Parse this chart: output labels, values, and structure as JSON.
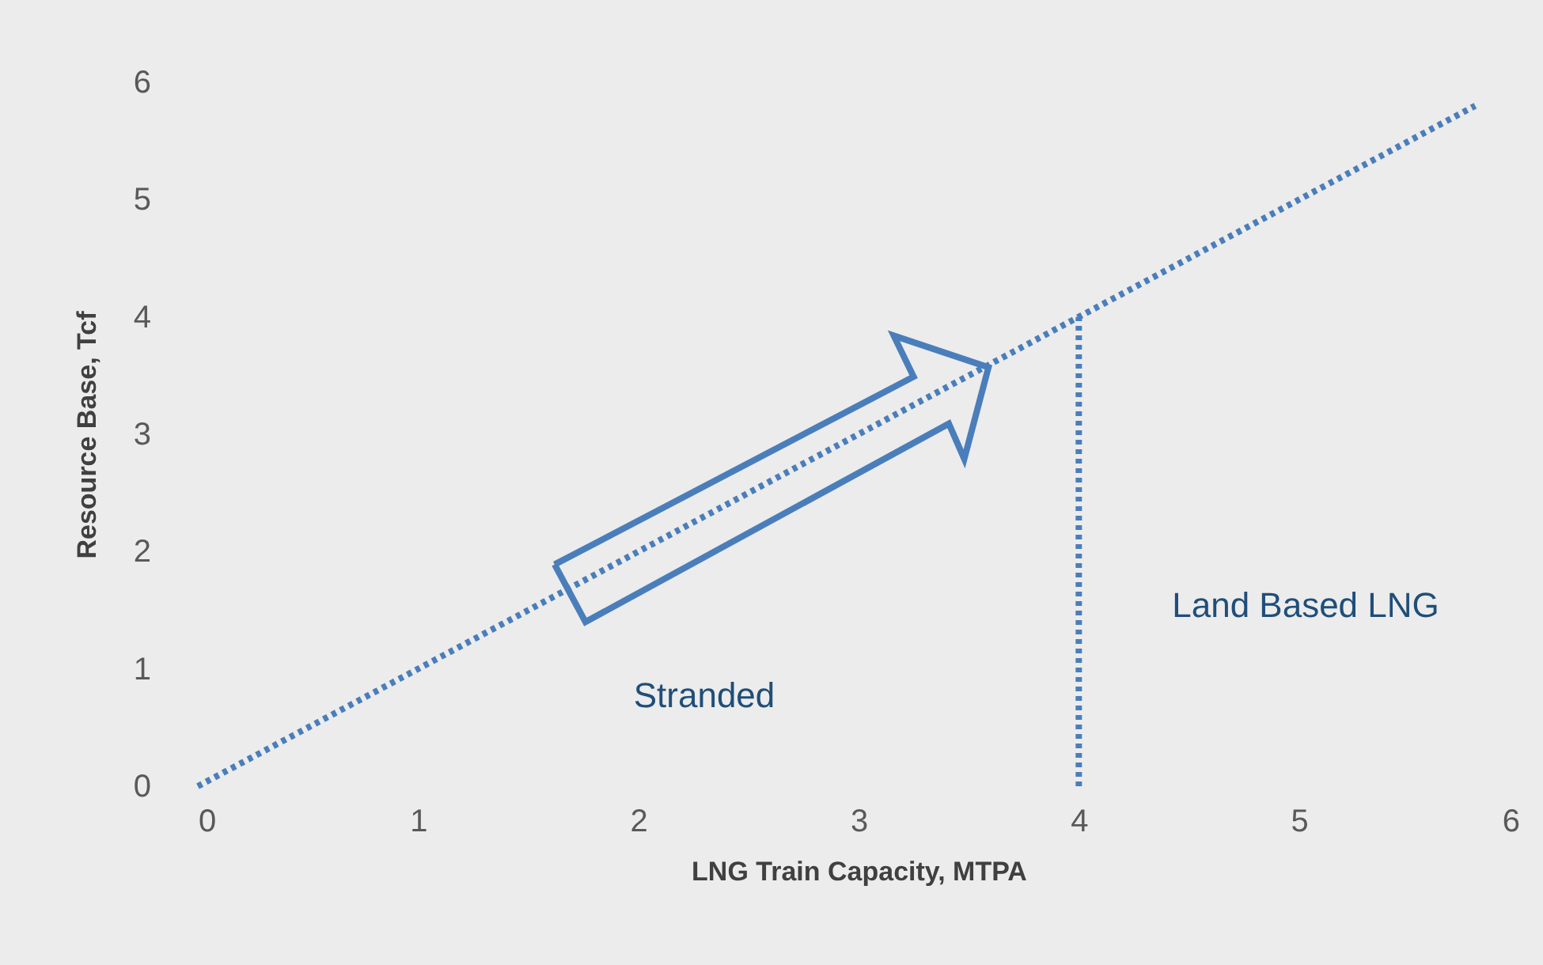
{
  "chart_data": {
    "type": "line",
    "xlabel": "LNG Train Capacity, MTPA",
    "ylabel": "Resource Base, Tcf",
    "xlim": [
      0,
      6
    ],
    "ylim": [
      0,
      6
    ],
    "xticks": [
      0,
      1,
      2,
      3,
      4,
      5,
      6
    ],
    "yticks": [
      0,
      1,
      2,
      3,
      4,
      5,
      6
    ],
    "grid": false,
    "line_style": "dotted",
    "marker": "none",
    "series": [
      {
        "color": "#4a7ebb",
        "x": [
          0,
          5.8
        ],
        "values": [
          0,
          5.8
        ]
      },
      {
        "color": "#4a7ebb",
        "x": [
          4,
          4
        ],
        "values": [
          0,
          4
        ]
      }
    ],
    "annotations": [
      "Stranded",
      "Land Based LNG"
    ]
  }
}
